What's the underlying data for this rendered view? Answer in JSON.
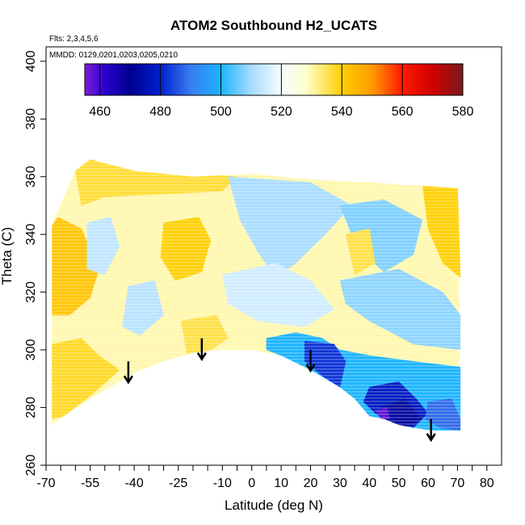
{
  "chart_data": {
    "type": "heatmap",
    "title": "ATOM2 Southbound H2_UCATS",
    "subtitle_lines": [
      "Flts: 2,3,4,5,6",
      "MMDD: 0129,0201,0203,0205,0210"
    ],
    "xlabel": "Latitude (deg N)",
    "ylabel": "Theta (C)",
    "xlim": [
      -70,
      85
    ],
    "ylim": [
      260,
      405
    ],
    "x_ticks": [
      -70,
      -55,
      -40,
      -25,
      -10,
      0,
      10,
      20,
      30,
      40,
      50,
      60,
      70,
      80
    ],
    "x_minor_ticks": [
      -65,
      -60,
      -50,
      -45,
      -35,
      -30,
      -20,
      -15,
      -5,
      5,
      15,
      25,
      35,
      45,
      55,
      65,
      75
    ],
    "y_ticks": [
      260,
      280,
      300,
      320,
      340,
      360,
      380,
      400
    ],
    "colorbar": {
      "ticks": [
        460,
        480,
        500,
        520,
        540,
        560,
        580
      ],
      "range": [
        455,
        580
      ],
      "stops": [
        {
          "v": 455,
          "c": "#7a1fd6"
        },
        {
          "v": 462,
          "c": "#2a00cc"
        },
        {
          "v": 470,
          "c": "#00008f"
        },
        {
          "v": 480,
          "c": "#0020d0"
        },
        {
          "v": 490,
          "c": "#3a7cf0"
        },
        {
          "v": 500,
          "c": "#1ab4ff"
        },
        {
          "v": 510,
          "c": "#a8dcff"
        },
        {
          "v": 520,
          "c": "#f6fbff"
        },
        {
          "v": 528,
          "c": "#ffffd0"
        },
        {
          "v": 540,
          "c": "#ffd000"
        },
        {
          "v": 550,
          "c": "#ff9a00"
        },
        {
          "v": 560,
          "c": "#ff1a00"
        },
        {
          "v": 570,
          "c": "#d00000"
        },
        {
          "v": 580,
          "c": "#7a1a1a"
        }
      ]
    },
    "data_boundary": {
      "top": [
        [
          -68,
          343
        ],
        [
          -65,
          352
        ],
        [
          -60,
          362
        ],
        [
          -56,
          368
        ],
        [
          -55,
          366
        ],
        [
          -40,
          362
        ],
        [
          -20,
          360
        ],
        [
          0,
          361
        ],
        [
          20,
          359
        ],
        [
          40,
          358
        ],
        [
          55,
          357
        ],
        [
          70,
          356
        ],
        [
          71,
          353
        ]
      ],
      "bottom": [
        [
          -68,
          274
        ],
        [
          -64,
          277
        ],
        [
          -55,
          283
        ],
        [
          -45,
          288
        ],
        [
          -40,
          292
        ],
        [
          -30,
          296
        ],
        [
          -20,
          299
        ],
        [
          -10,
          300
        ],
        [
          0,
          300
        ],
        [
          10,
          298
        ],
        [
          20,
          293
        ],
        [
          30,
          287
        ],
        [
          35,
          283
        ],
        [
          40,
          277
        ],
        [
          45,
          276
        ],
        [
          50,
          274
        ],
        [
          55,
          273
        ],
        [
          62,
          272
        ],
        [
          71,
          272
        ]
      ]
    },
    "regions": [
      {
        "value": 530,
        "poly": [
          [
            -68,
            274
          ],
          [
            -68,
            343
          ],
          [
            -60,
            362
          ],
          [
            -55,
            366
          ],
          [
            -40,
            362
          ],
          [
            -20,
            360
          ],
          [
            0,
            361
          ],
          [
            20,
            359
          ],
          [
            40,
            358
          ],
          [
            70,
            356
          ],
          [
            71,
            272
          ],
          [
            50,
            274
          ],
          [
            40,
            277
          ],
          [
            30,
            287
          ],
          [
            20,
            293
          ],
          [
            10,
            298
          ],
          [
            0,
            300
          ],
          [
            -20,
            299
          ],
          [
            -40,
            292
          ],
          [
            -55,
            283
          ]
        ]
      },
      {
        "value": 537,
        "poly": [
          [
            -60,
            362
          ],
          [
            -55,
            366
          ],
          [
            -40,
            363
          ],
          [
            -20,
            361
          ],
          [
            -5,
            360
          ],
          [
            -10,
            355
          ],
          [
            -30,
            354
          ],
          [
            -50,
            353
          ],
          [
            -58,
            350
          ]
        ]
      },
      {
        "value": 542,
        "poly": [
          [
            -68,
            343
          ],
          [
            -66,
            346
          ],
          [
            -58,
            342
          ],
          [
            -52,
            328
          ],
          [
            -55,
            318
          ],
          [
            -62,
            312
          ],
          [
            -68,
            312
          ]
        ]
      },
      {
        "value": 513,
        "poly": [
          [
            -56,
            344
          ],
          [
            -48,
            346
          ],
          [
            -45,
            336
          ],
          [
            -50,
            326
          ],
          [
            -56,
            328
          ]
        ]
      },
      {
        "value": 512,
        "poly": [
          [
            -42,
            322
          ],
          [
            -33,
            324
          ],
          [
            -30,
            312
          ],
          [
            -38,
            305
          ],
          [
            -44,
            308
          ]
        ]
      },
      {
        "value": 540,
        "poly": [
          [
            -30,
            344
          ],
          [
            -18,
            346
          ],
          [
            -14,
            338
          ],
          [
            -17,
            327
          ],
          [
            -26,
            324
          ],
          [
            -31,
            332
          ]
        ]
      },
      {
        "value": 538,
        "poly": [
          [
            -68,
            302
          ],
          [
            -58,
            304
          ],
          [
            -52,
            298
          ],
          [
            -45,
            293
          ],
          [
            -55,
            284
          ],
          [
            -64,
            277
          ],
          [
            -68,
            276
          ]
        ]
      },
      {
        "value": 536,
        "poly": [
          [
            -24,
            310
          ],
          [
            -12,
            312
          ],
          [
            -8,
            304
          ],
          [
            -14,
            300
          ],
          [
            -22,
            298
          ]
        ]
      },
      {
        "value": 510,
        "poly": [
          [
            -8,
            360
          ],
          [
            20,
            358
          ],
          [
            34,
            350
          ],
          [
            25,
            340
          ],
          [
            15,
            330
          ],
          [
            8,
            325
          ],
          [
            2,
            334
          ],
          [
            -4,
            345
          ]
        ]
      },
      {
        "value": 507,
        "poly": [
          [
            30,
            350
          ],
          [
            45,
            352
          ],
          [
            58,
            345
          ],
          [
            55,
            333
          ],
          [
            45,
            327
          ],
          [
            36,
            335
          ]
        ]
      },
      {
        "value": 515,
        "poly": [
          [
            -10,
            326
          ],
          [
            8,
            330
          ],
          [
            20,
            324
          ],
          [
            28,
            314
          ],
          [
            18,
            308
          ],
          [
            2,
            310
          ],
          [
            -8,
            316
          ]
        ]
      },
      {
        "value": 508,
        "poly": [
          [
            30,
            324
          ],
          [
            50,
            328
          ],
          [
            65,
            320
          ],
          [
            71,
            312
          ],
          [
            71,
            300
          ],
          [
            55,
            302
          ],
          [
            40,
            310
          ],
          [
            32,
            316
          ]
        ]
      },
      {
        "value": 540,
        "poly": [
          [
            58,
            358
          ],
          [
            70,
            357
          ],
          [
            71,
            325
          ],
          [
            65,
            330
          ],
          [
            60,
            342
          ]
        ]
      },
      {
        "value": 536,
        "poly": [
          [
            32,
            340
          ],
          [
            40,
            342
          ],
          [
            42,
            330
          ],
          [
            35,
            326
          ]
        ]
      },
      {
        "value": 500,
        "poly": [
          [
            5,
            304
          ],
          [
            15,
            306
          ],
          [
            24,
            304
          ],
          [
            30,
            300
          ],
          [
            40,
            298
          ],
          [
            55,
            296
          ],
          [
            71,
            294
          ],
          [
            71,
            272
          ],
          [
            62,
            272
          ],
          [
            55,
            273
          ],
          [
            50,
            274
          ],
          [
            45,
            276
          ],
          [
            40,
            277
          ],
          [
            35,
            283
          ],
          [
            30,
            287
          ],
          [
            20,
            293
          ],
          [
            10,
            298
          ],
          [
            5,
            300
          ]
        ]
      },
      {
        "value": 482,
        "poly": [
          [
            18,
            303
          ],
          [
            28,
            302
          ],
          [
            32,
            296
          ],
          [
            30,
            287
          ],
          [
            24,
            291
          ],
          [
            18,
            296
          ]
        ]
      },
      {
        "value": 478,
        "poly": [
          [
            40,
            287
          ],
          [
            50,
            289
          ],
          [
            56,
            283
          ],
          [
            60,
            278
          ],
          [
            55,
            273
          ],
          [
            48,
            275
          ],
          [
            42,
            278
          ],
          [
            38,
            282
          ]
        ]
      },
      {
        "value": 472,
        "poly": [
          [
            44,
            280
          ],
          [
            52,
            283
          ],
          [
            58,
            276
          ],
          [
            52,
            273
          ],
          [
            46,
            275
          ]
        ]
      },
      {
        "value": 458,
        "poly": [
          [
            42,
            279
          ],
          [
            46,
            280
          ],
          [
            47,
            276
          ],
          [
            44,
            276
          ]
        ]
      },
      {
        "value": 488,
        "poly": [
          [
            60,
            282
          ],
          [
            68,
            283
          ],
          [
            71,
            276
          ],
          [
            71,
            272
          ],
          [
            64,
            273
          ],
          [
            59,
            276
          ]
        ]
      }
    ],
    "arrows": [
      {
        "x": -42,
        "y_from": 296,
        "y_to": 289
      },
      {
        "x": -17,
        "y_from": 304,
        "y_to": 297
      },
      {
        "x": 20,
        "y_from": 300,
        "y_to": 293
      },
      {
        "x": 61,
        "y_from": 276,
        "y_to": 269
      }
    ]
  }
}
